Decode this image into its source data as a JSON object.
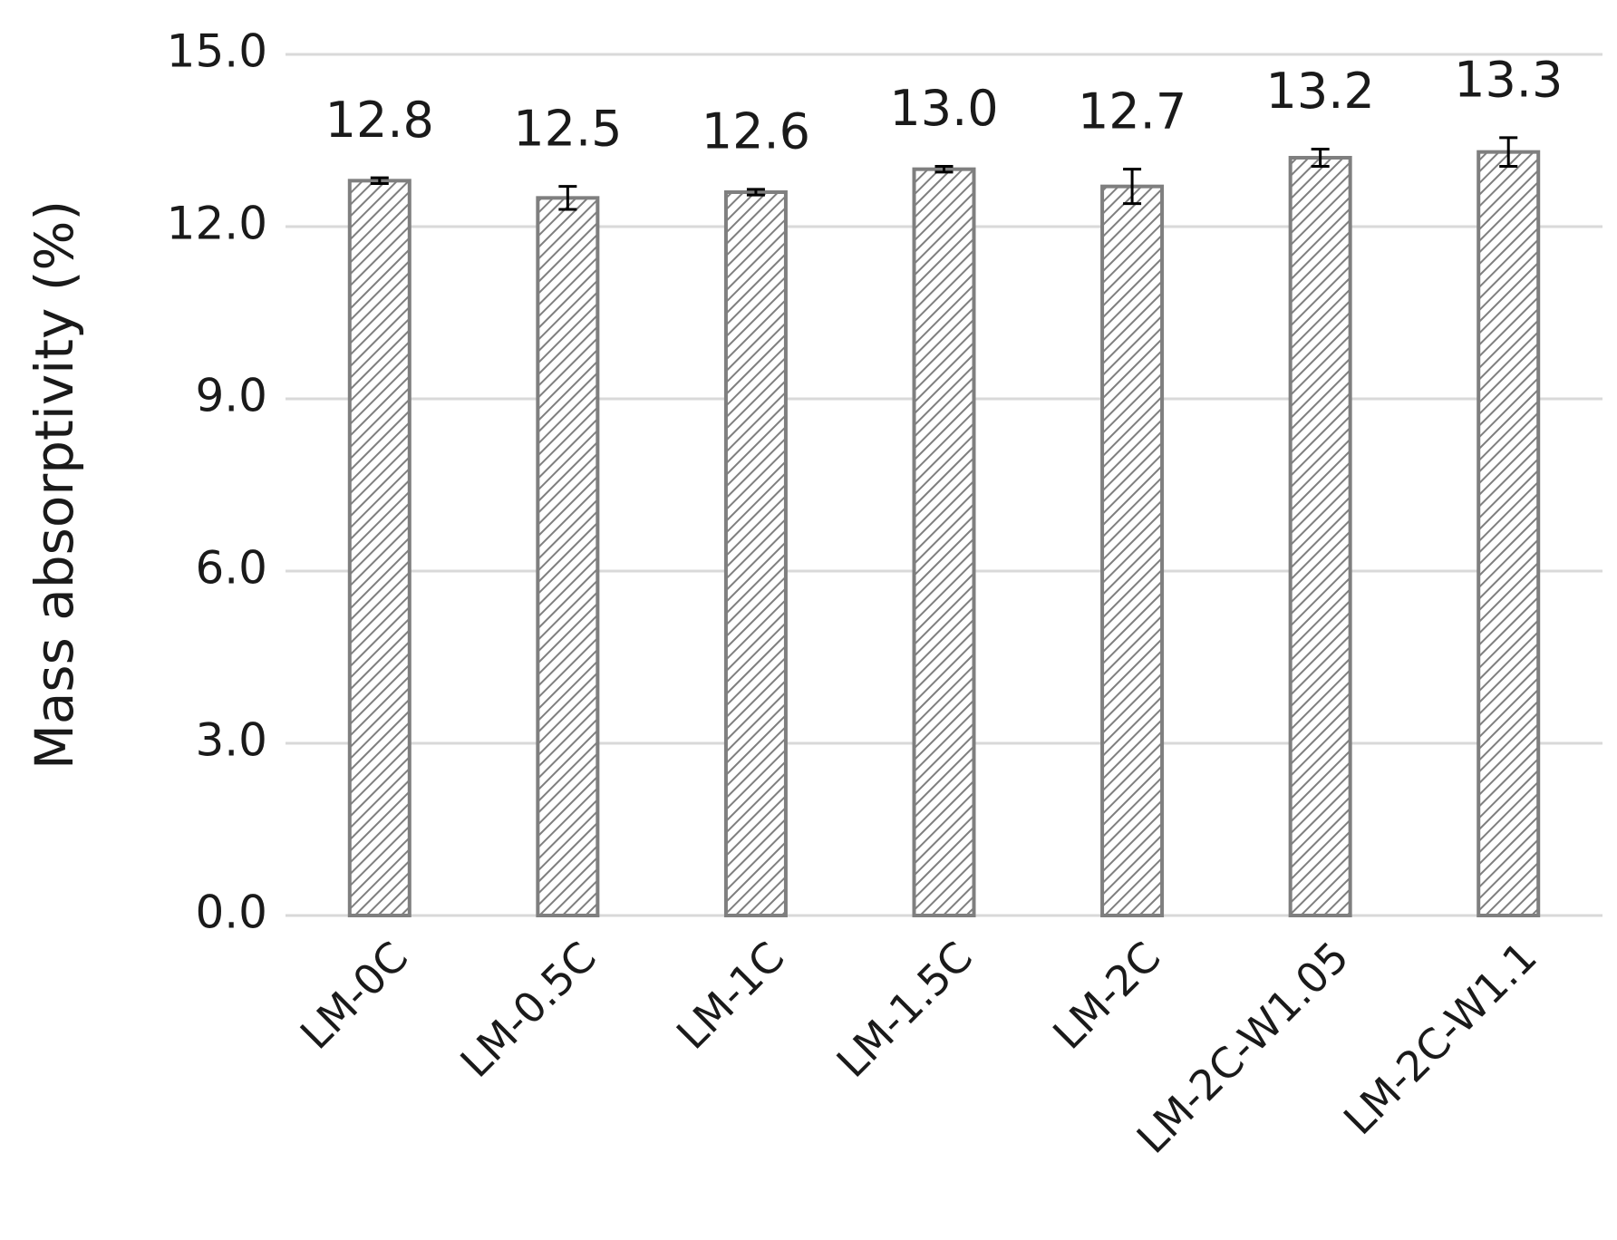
{
  "chart_data": {
    "type": "bar",
    "y_label": "Mass absorptivity (%)",
    "categories": [
      "LM-0C",
      "LM-0.5C",
      "LM-1C",
      "LM-1.5C",
      "LM-2C",
      "LM-2C-W1.05",
      "LM-2C-W1.1"
    ],
    "values": [
      12.8,
      12.5,
      12.6,
      13.0,
      12.7,
      13.2,
      13.3
    ],
    "value_labels": [
      "12.8",
      "12.5",
      "12.6",
      "13.0",
      "12.7",
      "13.2",
      "13.3"
    ],
    "errors": [
      0.05,
      0.2,
      0.05,
      0.05,
      0.3,
      0.15,
      0.25
    ],
    "color": "#7f7f7f",
    "ylim": [
      0,
      15
    ],
    "yticks": [
      {
        "value": 0,
        "label": "0.0"
      },
      {
        "value": 3,
        "label": "3.0"
      },
      {
        "value": 6,
        "label": "6.0"
      },
      {
        "value": 9,
        "label": "9.0"
      },
      {
        "value": 12,
        "label": "12.0"
      },
      {
        "value": 15,
        "label": "15.0"
      }
    ],
    "grid": true
  }
}
